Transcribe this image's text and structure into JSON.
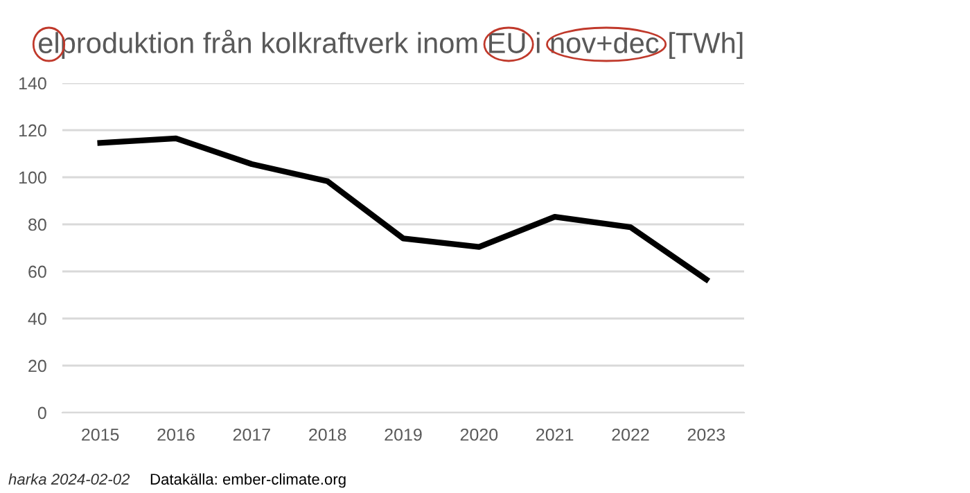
{
  "chart_data": {
    "type": "line",
    "title": "elproduktion från kolkraftverk inom EU i nov+dec [TWh]",
    "categories": [
      "2015",
      "2016",
      "2017",
      "2018",
      "2019",
      "2020",
      "2021",
      "2022",
      "2023"
    ],
    "series": [
      {
        "color": "#000000",
        "values": [
          114.6,
          116.5,
          105.6,
          98.3,
          74,
          70.4,
          83.2,
          78.8,
          56.6
        ]
      }
    ],
    "ylim": [
      0,
      140
    ],
    "yticks": [
      0,
      20,
      40,
      60,
      80,
      100,
      120,
      140
    ],
    "grid": "y",
    "legend": false,
    "marker": "none",
    "line_style": "solid",
    "annotations": [
      "harka 2024-02-02",
      "Datakälla: ember-climate.org"
    ]
  }
}
